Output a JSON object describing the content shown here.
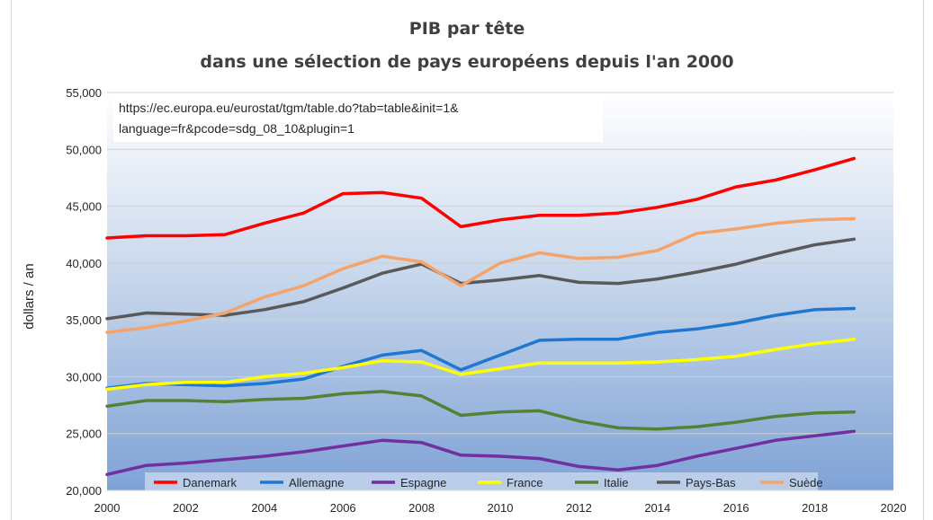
{
  "chart_data": {
    "type": "line",
    "title": "PIB par tête",
    "subtitle": "dans une sélection de pays européens depuis l'an 2000",
    "ylabel": "dollars / an",
    "xlabel": "",
    "xlim": [
      2000,
      2020
    ],
    "ylim": [
      20000,
      55000
    ],
    "x_ticks": [
      2000,
      2002,
      2004,
      2006,
      2008,
      2010,
      2012,
      2014,
      2016,
      2018,
      2020
    ],
    "x_tick_labels": [
      "2000",
      "2002",
      "2004",
      "2006",
      "2008",
      "2010",
      "2012",
      "2014",
      "2016",
      "2018",
      "2020"
    ],
    "y_ticks": [
      20000,
      25000,
      30000,
      35000,
      40000,
      45000,
      50000,
      55000
    ],
    "y_tick_labels": [
      "20,000",
      "25,000",
      "30,000",
      "35,000",
      "40,000",
      "45,000",
      "50,000",
      "55,000"
    ],
    "grid": "horizontal",
    "background": "gradient blue",
    "legend_position": "bottom-inside",
    "source_note": [
      "https://ec.europa.eu/eurostat/tgm/table.do?tab=table&init=1&",
      "language=fr&pcode=sdg_08_10&plugin=1"
    ],
    "x": [
      2000,
      2001,
      2002,
      2003,
      2004,
      2005,
      2006,
      2007,
      2008,
      2009,
      2010,
      2011,
      2012,
      2013,
      2014,
      2015,
      2016,
      2017,
      2018,
      2019
    ],
    "series": [
      {
        "name": "Danemark",
        "color": "#ff0000",
        "values": [
          42200,
          42400,
          42400,
          42500,
          43500,
          44400,
          46100,
          46200,
          45700,
          43200,
          43800,
          44200,
          44200,
          44400,
          44900,
          45600,
          46700,
          47300,
          48200,
          49200
        ]
      },
      {
        "name": "Allemagne",
        "color": "#1f77d0",
        "values": [
          29000,
          29400,
          29300,
          29200,
          29400,
          29800,
          30900,
          31900,
          32300,
          30600,
          31900,
          33200,
          33300,
          33300,
          33900,
          34200,
          34700,
          35400,
          35900,
          36000
        ]
      },
      {
        "name": "Espagne",
        "color": "#7030a0",
        "values": [
          21400,
          22200,
          22400,
          22700,
          23000,
          23400,
          23900,
          24400,
          24200,
          23100,
          23000,
          22800,
          22100,
          21800,
          22200,
          23000,
          23700,
          24400,
          24800,
          25200
        ]
      },
      {
        "name": "France",
        "color": "#ffff00",
        "values": [
          28900,
          29300,
          29500,
          29500,
          30000,
          30300,
          30800,
          31400,
          31300,
          30200,
          30700,
          31200,
          31200,
          31200,
          31300,
          31500,
          31800,
          32400,
          32900,
          33300
        ]
      },
      {
        "name": "Italie",
        "color": "#548235",
        "values": [
          27400,
          27900,
          27900,
          27800,
          28000,
          28100,
          28500,
          28700,
          28300,
          26600,
          26900,
          27000,
          26100,
          25500,
          25400,
          25600,
          26000,
          26500,
          26800,
          26900
        ]
      },
      {
        "name": "Pays-Bas",
        "color": "#595959",
        "values": [
          35100,
          35600,
          35500,
          35400,
          35900,
          36600,
          37800,
          39100,
          39900,
          38200,
          38500,
          38900,
          38300,
          38200,
          38600,
          39200,
          39900,
          40800,
          41600,
          42100
        ]
      },
      {
        "name": "Suède",
        "color": "#f4a46a",
        "values": [
          33900,
          34300,
          34900,
          35600,
          37000,
          38000,
          39500,
          40600,
          40100,
          38000,
          40000,
          40900,
          40400,
          40500,
          41100,
          42600,
          43000,
          43500,
          43800,
          43900
        ]
      }
    ]
  }
}
